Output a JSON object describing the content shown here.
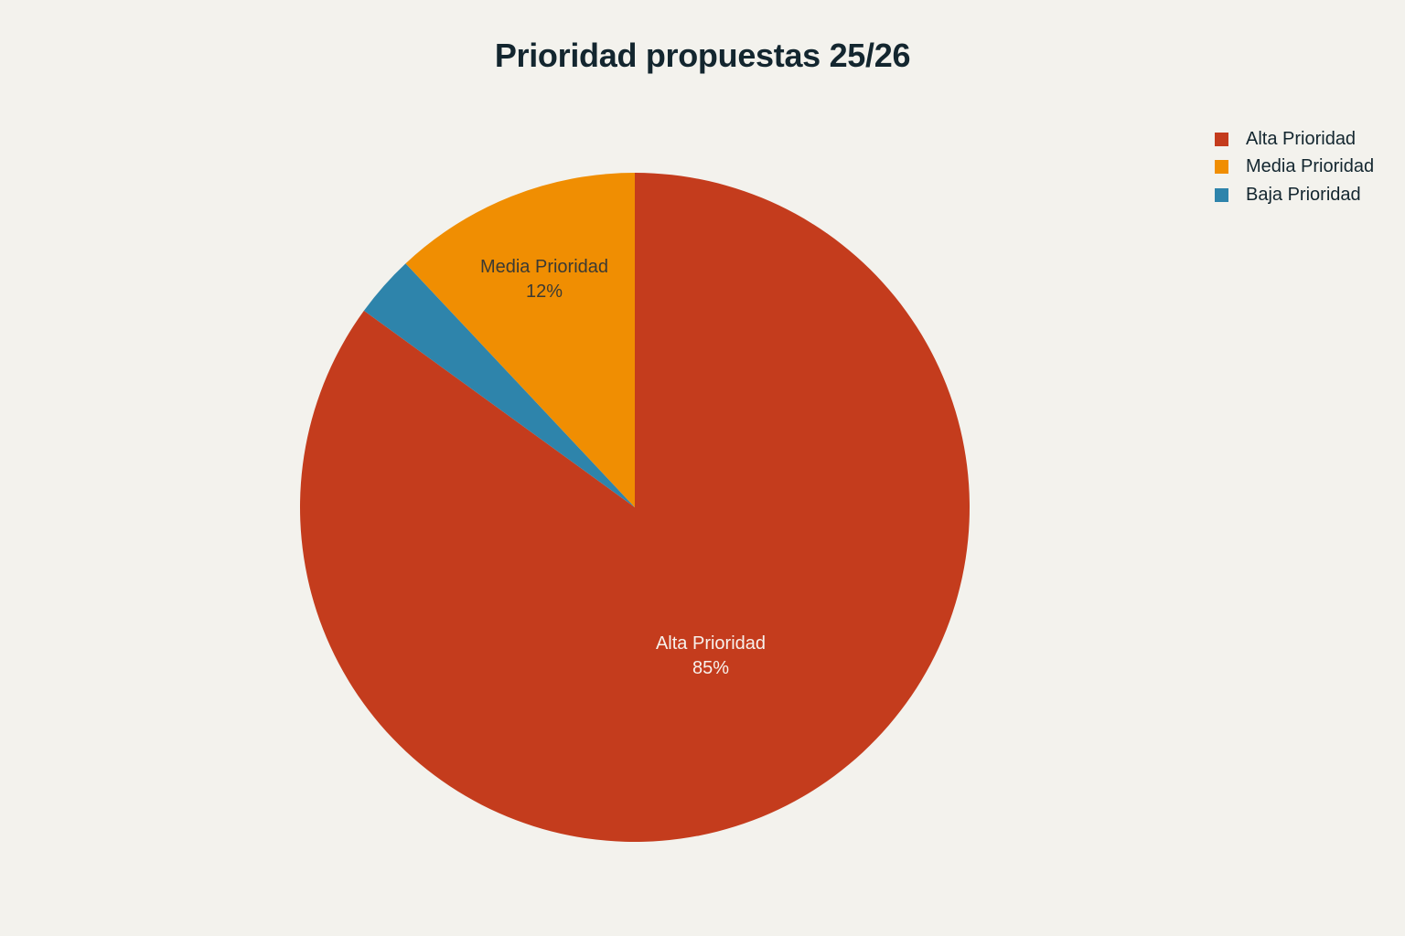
{
  "title": "Prioridad propuestas 25/26",
  "legend": [
    {
      "label": "Alta Prioridad",
      "color": "#c43c1d"
    },
    {
      "label": "Media Prioridad",
      "color": "#f08e02"
    },
    {
      "label": "Baja Prioridad",
      "color": "#2e84ab"
    }
  ],
  "slice_labels": {
    "alta": {
      "name": "Alta Prioridad",
      "pct": "85%"
    },
    "media": {
      "name": "Media Prioridad",
      "pct": "12%"
    }
  },
  "chart_data": {
    "type": "pie",
    "title": "Prioridad propuestas 25/26",
    "categories": [
      "Alta Prioridad",
      "Media Prioridad",
      "Baja Prioridad"
    ],
    "values": [
      85,
      12,
      3
    ],
    "colors": [
      "#c43c1d",
      "#f08e02",
      "#2e84ab"
    ],
    "slice_text": [
      "Alta Prioridad 85%",
      "Media Prioridad 12%",
      ""
    ],
    "legend_position": "top-right",
    "direction": "clockwise",
    "start_angle": "12 o'clock"
  }
}
